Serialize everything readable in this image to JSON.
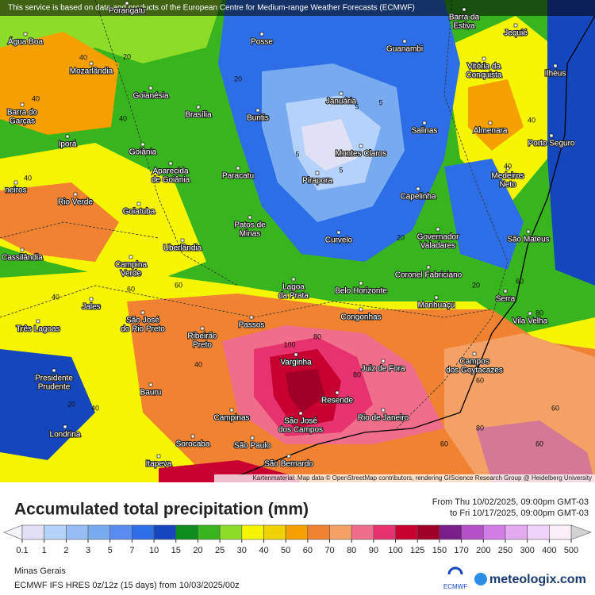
{
  "banner": "This service is based on data and products of the European Centre for Medium-range Weather Forecasts (ECMWF)",
  "attribution": "Kartenmaterial: Map data © OpenStreetMap contributors, rendering GIScience Research Group @ Heidelberg University",
  "title": "Accumulated total precipitation (mm)",
  "period": {
    "from": "From Thu 10/02/2025, 09:00pm GMT-03",
    "to": "to Fri 10/17/2025, 09:00pm GMT-03"
  },
  "legend": {
    "labels": [
      0.1,
      1,
      2,
      3,
      5,
      7,
      10,
      15,
      20,
      25,
      30,
      40,
      50,
      60,
      70,
      80,
      90,
      100,
      125,
      150,
      170,
      200,
      250,
      300,
      400,
      500
    ],
    "colors": [
      "#e1e1f5",
      "#b4d2fa",
      "#96bef5",
      "#78aaf0",
      "#5a8cf0",
      "#2d6ee6",
      "#1446be",
      "#0f8c1e",
      "#37b41e",
      "#8cdc28",
      "#f5f500",
      "#f0d200",
      "#f5a000",
      "#f08232",
      "#f5a064",
      "#f06e8c",
      "#e6326e",
      "#c80032",
      "#a00028",
      "#7a1e8c",
      "#b450c8",
      "#d27de6",
      "#e6aaf0",
      "#f0d2fa",
      "#faf0fa"
    ]
  },
  "region": "Minas Gerais",
  "model": "ECMWF IFS HRES 0z/12z (15 days) from 10/03/2025/00z",
  "logos": {
    "ecmwf": "ECMWF",
    "site": "meteologix.com"
  },
  "cities": [
    [
      "Porangatu"
    ],
    [
      "Água Boa"
    ],
    [
      "Posse"
    ],
    [
      "Guanambi"
    ],
    [
      "Barra da",
      "Estiva"
    ],
    [
      "Jequié"
    ],
    [
      "Mozarlândia"
    ],
    [
      "Vitória da",
      "Conquista"
    ],
    [
      "Ilhéus"
    ],
    [
      "Goianésia"
    ],
    [
      "Januária"
    ],
    [
      "Barra do",
      "Garças"
    ],
    [
      "Brasília"
    ],
    [
      "Buritis"
    ],
    [
      "Salinas"
    ],
    [
      "Almenara"
    ],
    [
      "Iporá"
    ],
    [
      "Goiânia"
    ],
    [
      "Montes Claros"
    ],
    [
      "Porto Seguro"
    ],
    [
      "Aparecida",
      "de Goiânia"
    ],
    [
      "Paracatu"
    ],
    [
      "Pirapora"
    ],
    [
      "Medeiros",
      "Neto"
    ],
    [
      "Capelinha"
    ],
    [
      "neiros"
    ],
    [
      "Rio Verde"
    ],
    [
      "Goiatuba"
    ],
    [
      "Patos de",
      "Minas"
    ],
    [
      "Curvelo"
    ],
    [
      "Governador",
      "Valadares"
    ],
    [
      "São Mateus"
    ],
    [
      "Uberlândia"
    ],
    [
      "Cassilândia"
    ],
    [
      "Campina",
      "Verde"
    ],
    [
      "Coronel Fabriciano"
    ],
    [
      "Lagoa",
      "da Prata"
    ],
    [
      "Belo Horizonte"
    ],
    [
      "Serra"
    ],
    [
      "Jales"
    ],
    [
      "Manhuaçu"
    ],
    [
      "São José",
      "do Rio Preto"
    ],
    [
      "Vila Velha"
    ],
    [
      "Passos"
    ],
    [
      "Congonhas"
    ],
    [
      "Três Lagoas"
    ],
    [
      "Ribeirão",
      "Preto"
    ],
    [
      "Varginha"
    ],
    [
      "Juiz de Fora"
    ],
    [
      "Campos",
      "dos Goytacazes"
    ],
    [
      "Presidente",
      "Prudente"
    ],
    [
      "Bauru"
    ],
    [
      "Resende"
    ],
    [
      "Campinas"
    ],
    [
      "São José",
      "dos Campos"
    ],
    [
      "Rio de Janeiro"
    ],
    [
      "Londrina"
    ],
    [
      "Sorocaba"
    ],
    [
      "São Paulo"
    ],
    [
      "São Bernardo"
    ],
    [
      "Itapeva"
    ]
  ],
  "contour_labels": [
    40,
    20,
    40,
    40,
    40,
    20,
    5,
    5,
    5,
    5,
    20,
    40,
    40,
    20,
    40,
    60,
    60,
    40,
    60,
    80,
    100,
    80,
    60,
    80,
    60,
    40,
    20,
    60,
    80,
    60
  ]
}
